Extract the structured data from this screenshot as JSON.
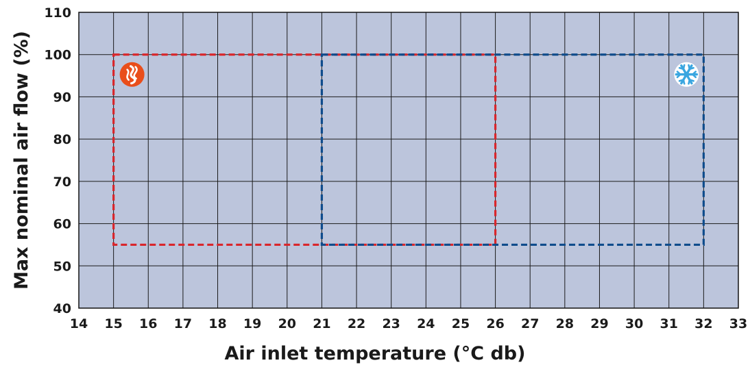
{
  "chart_data": {
    "type": "area",
    "xlabel": "Air inlet temperature (°C db)",
    "ylabel": "Max nominal air flow  (%)",
    "xlim": [
      14,
      33
    ],
    "ylim": [
      40,
      110
    ],
    "x_ticks": [
      14,
      15,
      16,
      17,
      18,
      19,
      20,
      21,
      22,
      23,
      24,
      25,
      26,
      27,
      28,
      29,
      30,
      31,
      32,
      33
    ],
    "y_ticks": [
      40,
      50,
      60,
      70,
      80,
      90,
      100,
      110
    ],
    "grid": true,
    "plot_background": "#bcc5dc",
    "series": [
      {
        "mode": "heating",
        "icon": "flame-icon",
        "color": "#d9262b",
        "icon_color": "#e94e1b",
        "x_range": [
          15,
          26
        ],
        "y_range": [
          55,
          100
        ],
        "line_style": "dashed"
      },
      {
        "mode": "cooling",
        "icon": "snowflake-icon",
        "color": "#0f4c8c",
        "icon_color": "#3aa6e0",
        "x_range": [
          21,
          32
        ],
        "y_range": [
          55,
          100
        ],
        "line_style": "dashed"
      }
    ]
  }
}
